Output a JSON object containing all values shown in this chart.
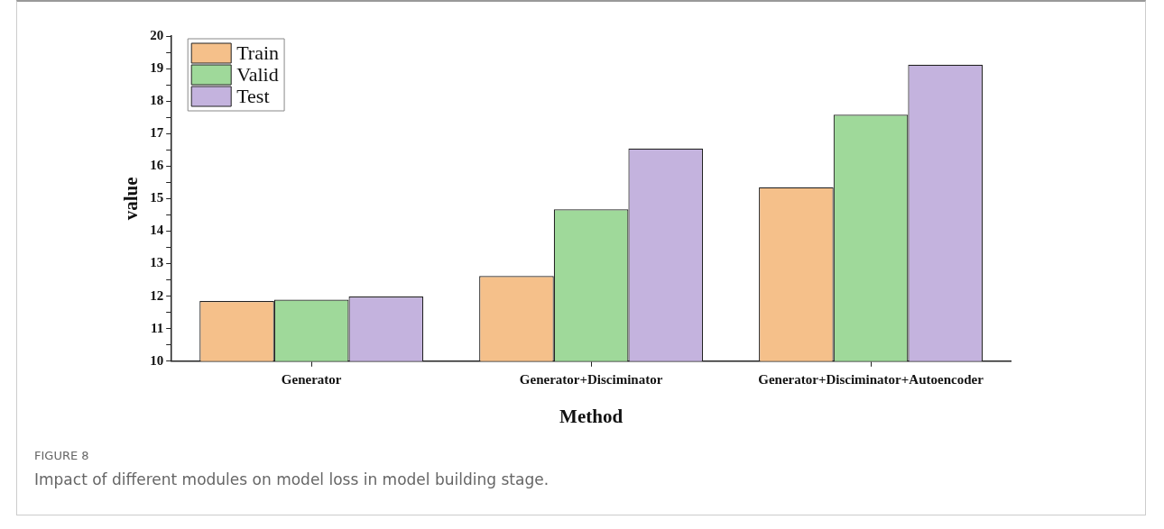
{
  "chart_data": {
    "type": "bar",
    "xlabel": "Method",
    "ylabel": "value",
    "categories": [
      "Generator",
      "Generator+Disciminator",
      "Generator+Disciminator+Autoencoder"
    ],
    "series": [
      {
        "name": "Train",
        "color": "#f5c08a",
        "values": [
          11.85,
          12.62,
          15.35
        ]
      },
      {
        "name": "Valid",
        "color": "#9fd99a",
        "values": [
          11.89,
          14.67,
          17.58
        ]
      },
      {
        "name": "Test",
        "color": "#c4b3de",
        "values": [
          11.99,
          16.54,
          19.12
        ]
      }
    ],
    "ylim": [
      10,
      20
    ],
    "yticks": [
      10,
      {
        "value": 10.5,
        "label": null
      },
      11,
      {
        "value": 11.5,
        "label": null
      },
      12,
      {
        "value": 12.5,
        "label": null
      },
      13,
      {
        "value": 13.5,
        "label": null
      },
      14,
      {
        "value": 14.5,
        "label": null
      },
      15,
      {
        "value": 15.5,
        "label": null
      },
      16,
      {
        "value": 16.5,
        "label": null
      },
      17,
      {
        "value": 17.5,
        "label": null
      },
      18,
      {
        "value": 18.5,
        "label": null
      },
      19,
      {
        "value": 19.5,
        "label": null
      },
      20
    ],
    "grid": false,
    "legend": "top left",
    "annotations": [
      "FIGURE 8",
      "Impact of different modules on model loss in model building stage."
    ]
  }
}
